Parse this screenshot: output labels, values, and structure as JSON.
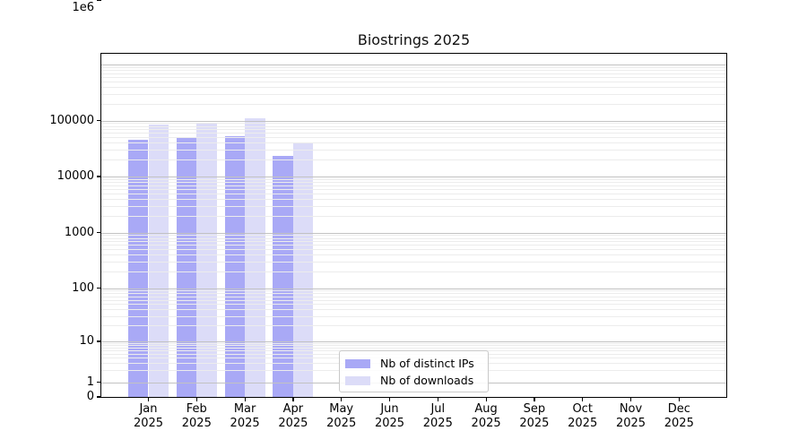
{
  "chart_data": {
    "type": "bar",
    "title": "Biostrings 2025",
    "yscale": "log",
    "ylim": [
      0,
      1000000
    ],
    "grid": "horizontal major+minor, drawn over bars",
    "legend_position": "inside lower-center-left",
    "months": [
      "Jan",
      "Feb",
      "Mar",
      "Apr",
      "May",
      "Jun",
      "Jul",
      "Aug",
      "Sep",
      "Oct",
      "Nov",
      "Dec"
    ],
    "year": "2025",
    "categories": [
      "Jan 2025",
      "Feb 2025",
      "Mar 2025",
      "Apr 2025",
      "May 2025",
      "Jun 2025",
      "Jul 2025",
      "Aug 2025",
      "Sep 2025",
      "Oct 2025",
      "Nov 2025",
      "Dec 2025"
    ],
    "yticks": {
      "values": [
        0,
        1,
        10,
        100,
        1000,
        10000,
        100000,
        1000000
      ],
      "labels": [
        "0",
        "1",
        "10",
        "100",
        "1000",
        "10000",
        "100000",
        "1e6"
      ]
    },
    "series": [
      {
        "name": "Nb of distinct IPs",
        "color": "#a9a9f6",
        "values": [
          45000,
          48000,
          52000,
          23500,
          null,
          null,
          null,
          null,
          null,
          null,
          null,
          null
        ]
      },
      {
        "name": "Nb of downloads",
        "color": "#dcdcf8",
        "values": [
          84000,
          89000,
          110000,
          40000,
          null,
          null,
          null,
          null,
          null,
          null,
          null,
          null
        ]
      }
    ]
  }
}
